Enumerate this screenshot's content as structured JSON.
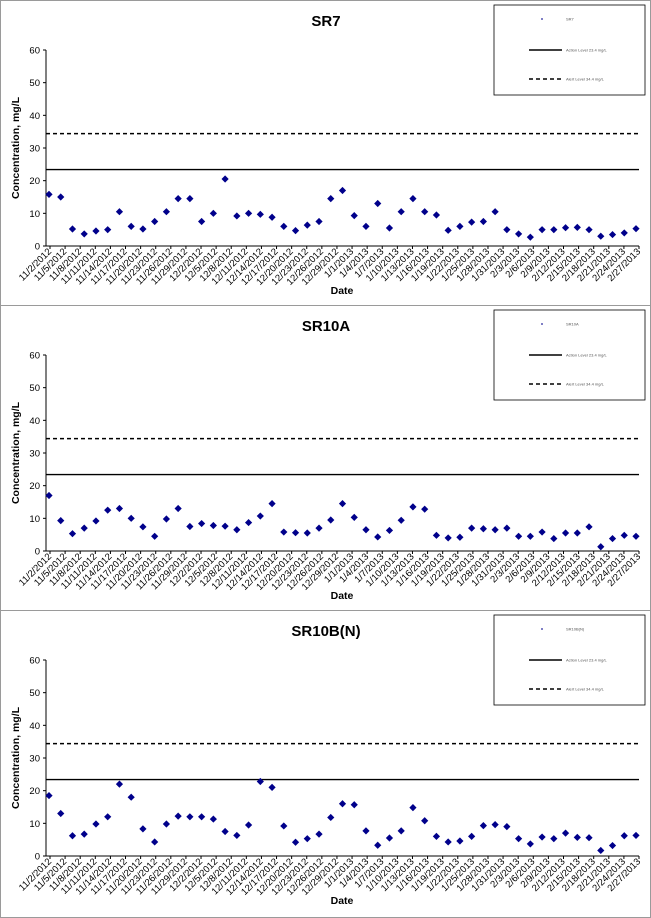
{
  "chart_data": [
    {
      "type": "scatter",
      "title": "SR7",
      "xlabel": "Date",
      "ylabel": "Concentration, mg/L",
      "ylim": [
        0,
        60
      ],
      "yticks": [
        0,
        10,
        20,
        30,
        40,
        50,
        60
      ],
      "xtick_labels": [
        "11/2/2012",
        "11/5/2012",
        "11/8/2012",
        "11/11/2012",
        "11/14/2012",
        "11/17/2012",
        "11/20/2012",
        "11/23/2012",
        "11/26/2012",
        "11/29/2012",
        "12/2/2012",
        "12/5/2012",
        "12/8/2012",
        "12/11/2012",
        "12/14/2012",
        "12/17/2012",
        "12/20/2012",
        "12/23/2012",
        "12/26/2012",
        "12/29/2012",
        "1/1/2013",
        "1/4/2013",
        "1/7/2013",
        "1/10/2013",
        "1/13/2013",
        "1/16/2013",
        "1/19/2013",
        "1/22/2013",
        "1/25/2013",
        "1/28/2013",
        "1/31/2013",
        "2/3/2013",
        "2/6/2013",
        "2/9/2013",
        "2/12/2013",
        "2/15/2013",
        "2/18/2013",
        "2/21/2013",
        "2/24/2013",
        "2/27/2013"
      ],
      "grid": false,
      "legend": {
        "position": "top-right",
        "entries": [
          "SR7",
          "Action Level 23.4 mg/L",
          "Alert Level 34.4 mg/L"
        ]
      },
      "series": [
        {
          "name": "SR7",
          "marker": "diamond",
          "color": "#00008b",
          "x": [
            0,
            1,
            2,
            3,
            4,
            5,
            6,
            7,
            8,
            9,
            10,
            11,
            12,
            13,
            14,
            15,
            16,
            17,
            18,
            19,
            20,
            21,
            22,
            23,
            24,
            25,
            26,
            27,
            28,
            29,
            30,
            31,
            32,
            33,
            34,
            35,
            36,
            37,
            38,
            39,
            40,
            41,
            42,
            43,
            44,
            45,
            46,
            47,
            48,
            49,
            50
          ],
          "y": [
            15.8,
            15,
            5.2,
            3.7,
            4.6,
            5,
            10.5,
            6,
            5.2,
            7.5,
            10.5,
            14.5,
            14.5,
            7.5,
            10,
            20.5,
            9.2,
            10,
            9.7,
            8.8,
            6,
            4.7,
            6.4,
            7.5,
            14.5,
            17,
            9.3,
            6,
            13,
            5.5,
            10.5,
            14.5,
            10.5,
            9.5,
            4.8,
            6,
            7.3,
            7.5,
            10.5,
            5,
            3.7,
            2.7,
            5,
            5,
            5.6,
            5.7,
            5,
            3,
            3.5,
            4,
            5.3
          ]
        }
      ],
      "reference_lines": [
        {
          "name": "Action Level 23.4 mg/L",
          "y": 23.4,
          "style": "solid"
        },
        {
          "name": "Alert Level 34.4 mg/L",
          "y": 34.4,
          "style": "dashed"
        }
      ]
    },
    {
      "type": "scatter",
      "title": "SR10A",
      "xlabel": "Date",
      "ylabel": "Concentration, mg/L",
      "ylim": [
        0,
        60
      ],
      "yticks": [
        0,
        10,
        20,
        30,
        40,
        50,
        60
      ],
      "xtick_labels": [
        "11/2/2012",
        "11/5/2012",
        "11/8/2012",
        "11/11/2012",
        "11/14/2012",
        "11/17/2012",
        "11/20/2012",
        "11/23/2012",
        "11/26/2012",
        "11/29/2012",
        "12/2/2012",
        "12/5/2012",
        "12/8/2012",
        "12/11/2012",
        "12/14/2012",
        "12/17/2012",
        "12/20/2012",
        "12/23/2012",
        "12/26/2012",
        "12/29/2012",
        "1/1/2013",
        "1/4/2013",
        "1/7/2013",
        "1/10/2013",
        "1/13/2013",
        "1/16/2013",
        "1/19/2013",
        "1/22/2013",
        "1/25/2013",
        "1/28/2013",
        "1/31/2013",
        "2/3/2013",
        "2/6/2013",
        "2/9/2013",
        "2/12/2013",
        "2/15/2013",
        "2/18/2013",
        "2/21/2013",
        "2/24/2013",
        "2/27/2013"
      ],
      "grid": false,
      "legend": {
        "position": "top-right",
        "entries": [
          "SR10A",
          "Action Level 23.4 mg/L",
          "Alert Level 34.4 mg/L"
        ]
      },
      "series": [
        {
          "name": "SR10A",
          "marker": "diamond",
          "color": "#00008b",
          "x": [
            0,
            1,
            2,
            3,
            4,
            5,
            6,
            7,
            8,
            9,
            10,
            11,
            12,
            13,
            14,
            15,
            16,
            17,
            18,
            19,
            20,
            21,
            22,
            23,
            24,
            25,
            26,
            27,
            28,
            29,
            30,
            31,
            32,
            33,
            34,
            35,
            36,
            37,
            38,
            39,
            40,
            41,
            42,
            43,
            44,
            45,
            46,
            47,
            48,
            49,
            50
          ],
          "y": [
            17,
            9.3,
            5.3,
            7,
            9.2,
            12.5,
            13,
            10,
            7.4,
            4.5,
            9.8,
            13,
            7.5,
            8.4,
            7.8,
            7.6,
            6.5,
            8.7,
            10.7,
            14.5,
            5.8,
            5.6,
            5.5,
            7,
            9.5,
            14.5,
            10.3,
            6.5,
            4.3,
            6.3,
            9.4,
            13.5,
            12.8,
            4.8,
            4,
            4.2,
            7,
            6.8,
            6.5,
            7,
            4.5,
            4.5,
            5.8,
            3.8,
            5.5,
            5.5,
            7.4,
            1.3,
            3.8,
            4.8,
            4.5
          ]
        }
      ],
      "reference_lines": [
        {
          "name": "Action Level 23.4 mg/L",
          "y": 23.4,
          "style": "solid"
        },
        {
          "name": "Alert Level 34.4 mg/L",
          "y": 34.4,
          "style": "dashed"
        }
      ]
    },
    {
      "type": "scatter",
      "title": "SR10B(N)",
      "xlabel": "Date",
      "ylabel": "Concentration, mg/L",
      "ylim": [
        0,
        60
      ],
      "yticks": [
        0,
        10,
        20,
        30,
        40,
        50,
        60
      ],
      "xtick_labels": [
        "11/2/2012",
        "11/5/2012",
        "11/8/2012",
        "11/11/2012",
        "11/14/2012",
        "11/17/2012",
        "11/20/2012",
        "11/23/2012",
        "11/26/2012",
        "11/29/2012",
        "12/2/2012",
        "12/5/2012",
        "12/8/2012",
        "12/11/2012",
        "12/14/2012",
        "12/17/2012",
        "12/20/2012",
        "12/23/2012",
        "12/26/2012",
        "12/29/2012",
        "1/1/2013",
        "1/4/2013",
        "1/7/2013",
        "1/10/2013",
        "1/13/2013",
        "1/16/2013",
        "1/19/2013",
        "1/22/2013",
        "1/25/2013",
        "1/28/2013",
        "1/31/2013",
        "2/3/2013",
        "2/6/2013",
        "2/9/2013",
        "2/12/2013",
        "2/15/2013",
        "2/18/2013",
        "2/21/2013",
        "2/24/2013",
        "2/27/2013"
      ],
      "grid": false,
      "legend": {
        "position": "top-right",
        "entries": [
          "SR10B(N)",
          "Action Level 23.4 mg/L",
          "Alert Level 34.4 mg/L"
        ]
      },
      "series": [
        {
          "name": "SR10B(N)",
          "marker": "diamond",
          "color": "#00008b",
          "x": [
            0,
            1,
            2,
            3,
            4,
            5,
            6,
            7,
            8,
            9,
            10,
            11,
            12,
            13,
            14,
            15,
            16,
            17,
            18,
            19,
            20,
            21,
            22,
            23,
            24,
            25,
            26,
            27,
            28,
            29,
            30,
            31,
            32,
            33,
            34,
            35,
            36,
            37,
            38,
            39,
            40,
            41,
            42,
            43,
            44,
            45,
            46,
            47,
            48,
            49,
            50
          ],
          "y": [
            18.5,
            13,
            6.2,
            6.7,
            9.8,
            12,
            22,
            18,
            8.3,
            4.3,
            9.8,
            12.2,
            12,
            12,
            11.3,
            7.5,
            6.3,
            9.5,
            22.8,
            21,
            9.2,
            4.2,
            5.3,
            6.7,
            11.8,
            16,
            15.7,
            7.7,
            3.3,
            5.5,
            7.7,
            14.8,
            10.8,
            6,
            4.3,
            4.6,
            6,
            9.3,
            9.6,
            9,
            5.3,
            3.7,
            5.8,
            5.3,
            7,
            5.7,
            5.6,
            1.7,
            3.2,
            6.2,
            6.3
          ]
        }
      ],
      "reference_lines": [
        {
          "name": "Action Level 23.4 mg/L",
          "y": 23.4,
          "style": "solid"
        },
        {
          "name": "Alert Level 34.4 mg/L",
          "y": 34.4,
          "style": "dashed"
        }
      ]
    }
  ]
}
